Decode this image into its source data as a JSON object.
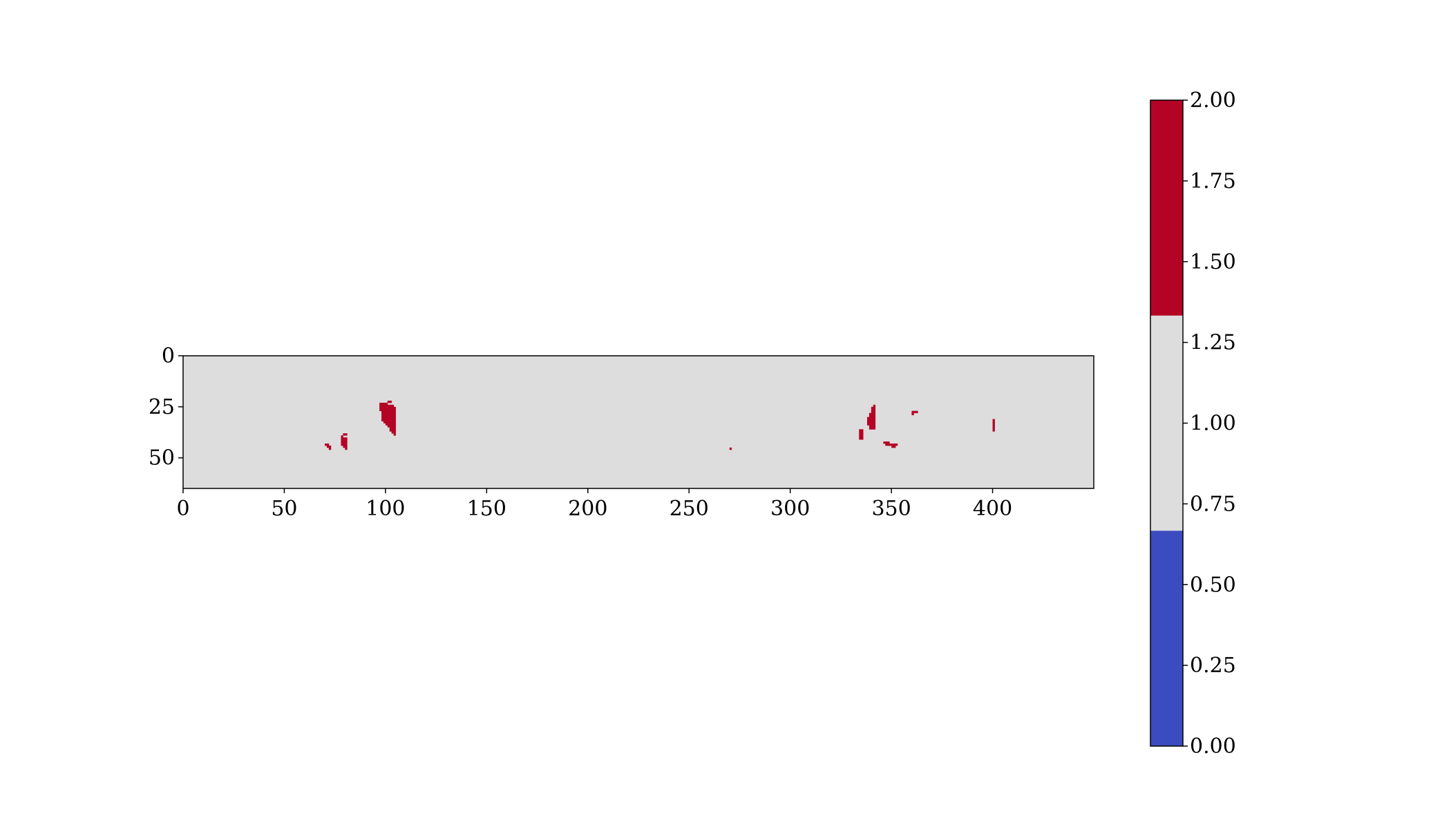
{
  "chart_data": {
    "type": "heatmap",
    "title": "",
    "xlabel": "",
    "ylabel": "",
    "grid": false,
    "xlim": [
      0,
      450
    ],
    "ylim": [
      65,
      0
    ],
    "x_ticks": [
      "0",
      "50",
      "100",
      "150",
      "200",
      "250",
      "300",
      "350",
      "400"
    ],
    "y_ticks": [
      "0",
      "25",
      "50"
    ],
    "background_value": 1,
    "colormap": "coolwarm",
    "colors": {
      "low": "#3b4cc0",
      "mid": "#dddddd",
      "high": "#b40426"
    },
    "colorbar": {
      "min": 0.0,
      "max": 2.0,
      "placement": "right",
      "levels": [
        {
          "from": 0.0,
          "to": 0.667,
          "color": "#3b4cc0"
        },
        {
          "from": 0.667,
          "to": 1.333,
          "color": "#dddddd"
        },
        {
          "from": 1.333,
          "to": 2.0,
          "color": "#b40426"
        }
      ],
      "ticks": [
        "0.00",
        "0.25",
        "0.50",
        "0.75",
        "1.00",
        "1.25",
        "1.50",
        "1.75",
        "2.00"
      ]
    },
    "regions": [
      {
        "value": 2,
        "cells": [
          [
            70,
            43
          ],
          [
            71,
            43
          ],
          [
            71,
            44
          ],
          [
            72,
            44
          ],
          [
            72,
            45
          ]
        ]
      },
      {
        "value": 2,
        "cells": [
          [
            78,
            39
          ],
          [
            79,
            38
          ],
          [
            80,
            38
          ],
          [
            78,
            40
          ],
          [
            79,
            40
          ],
          [
            80,
            40
          ],
          [
            78,
            41
          ],
          [
            79,
            41
          ],
          [
            80,
            41
          ],
          [
            78,
            42
          ],
          [
            79,
            42
          ],
          [
            80,
            42
          ],
          [
            78,
            43
          ],
          [
            79,
            43
          ],
          [
            80,
            43
          ],
          [
            79,
            44
          ],
          [
            80,
            44
          ],
          [
            80,
            45
          ]
        ]
      },
      {
        "value": 2,
        "cells": [
          [
            97,
            23
          ],
          [
            98,
            23
          ],
          [
            99,
            23
          ],
          [
            100,
            23
          ],
          [
            101,
            22
          ],
          [
            102,
            22
          ],
          [
            97,
            24
          ],
          [
            98,
            24
          ],
          [
            99,
            24
          ],
          [
            100,
            24
          ],
          [
            101,
            24
          ],
          [
            102,
            24
          ],
          [
            103,
            24
          ],
          [
            97,
            25
          ],
          [
            98,
            25
          ],
          [
            99,
            25
          ],
          [
            100,
            25
          ],
          [
            101,
            25
          ],
          [
            102,
            25
          ],
          [
            103,
            25
          ],
          [
            104,
            25
          ],
          [
            97,
            26
          ],
          [
            98,
            26
          ],
          [
            99,
            26
          ],
          [
            100,
            26
          ],
          [
            101,
            26
          ],
          [
            102,
            26
          ],
          [
            103,
            26
          ],
          [
            104,
            26
          ],
          [
            98,
            27
          ],
          [
            99,
            27
          ],
          [
            100,
            27
          ],
          [
            101,
            27
          ],
          [
            102,
            27
          ],
          [
            103,
            27
          ],
          [
            104,
            27
          ],
          [
            98,
            28
          ],
          [
            99,
            28
          ],
          [
            100,
            28
          ],
          [
            101,
            28
          ],
          [
            102,
            28
          ],
          [
            103,
            28
          ],
          [
            104,
            28
          ],
          [
            98,
            29
          ],
          [
            99,
            29
          ],
          [
            100,
            29
          ],
          [
            101,
            29
          ],
          [
            102,
            29
          ],
          [
            103,
            29
          ],
          [
            104,
            29
          ],
          [
            98,
            30
          ],
          [
            99,
            30
          ],
          [
            100,
            30
          ],
          [
            101,
            30
          ],
          [
            102,
            30
          ],
          [
            103,
            30
          ],
          [
            104,
            30
          ],
          [
            98,
            31
          ],
          [
            99,
            31
          ],
          [
            100,
            31
          ],
          [
            101,
            31
          ],
          [
            102,
            31
          ],
          [
            103,
            31
          ],
          [
            104,
            31
          ],
          [
            99,
            32
          ],
          [
            100,
            32
          ],
          [
            101,
            32
          ],
          [
            102,
            32
          ],
          [
            103,
            32
          ],
          [
            104,
            32
          ],
          [
            100,
            33
          ],
          [
            101,
            33
          ],
          [
            102,
            33
          ],
          [
            103,
            33
          ],
          [
            104,
            33
          ],
          [
            101,
            34
          ],
          [
            102,
            34
          ],
          [
            103,
            34
          ],
          [
            104,
            34
          ],
          [
            102,
            35
          ],
          [
            103,
            35
          ],
          [
            104,
            35
          ],
          [
            102,
            36
          ],
          [
            103,
            36
          ],
          [
            104,
            36
          ],
          [
            103,
            37
          ],
          [
            104,
            37
          ],
          [
            104,
            38
          ]
        ]
      },
      {
        "value": 2,
        "cells": [
          [
            270,
            45
          ]
        ]
      },
      {
        "value": 2,
        "cells": [
          [
            334,
            36
          ],
          [
            335,
            36
          ],
          [
            334,
            37
          ],
          [
            335,
            37
          ],
          [
            334,
            38
          ],
          [
            335,
            38
          ],
          [
            334,
            39
          ],
          [
            335,
            39
          ],
          [
            334,
            40
          ],
          [
            335,
            40
          ]
        ]
      },
      {
        "value": 2,
        "cells": [
          [
            341,
            24
          ],
          [
            340,
            25
          ],
          [
            341,
            25
          ],
          [
            340,
            26
          ],
          [
            341,
            26
          ],
          [
            340,
            27
          ],
          [
            341,
            27
          ],
          [
            339,
            28
          ],
          [
            340,
            28
          ],
          [
            341,
            28
          ],
          [
            339,
            29
          ],
          [
            340,
            29
          ],
          [
            341,
            29
          ],
          [
            338,
            30
          ],
          [
            339,
            30
          ],
          [
            340,
            30
          ],
          [
            341,
            30
          ],
          [
            338,
            31
          ],
          [
            339,
            31
          ],
          [
            340,
            31
          ],
          [
            341,
            31
          ],
          [
            338,
            32
          ],
          [
            339,
            32
          ],
          [
            340,
            32
          ],
          [
            341,
            32
          ],
          [
            338,
            33
          ],
          [
            339,
            33
          ],
          [
            340,
            33
          ],
          [
            341,
            33
          ],
          [
            339,
            34
          ],
          [
            340,
            34
          ],
          [
            341,
            34
          ],
          [
            339,
            35
          ],
          [
            340,
            35
          ],
          [
            341,
            35
          ]
        ]
      },
      {
        "value": 2,
        "cells": [
          [
            346,
            42
          ],
          [
            347,
            42
          ],
          [
            348,
            42
          ],
          [
            347,
            43
          ],
          [
            348,
            43
          ],
          [
            349,
            43
          ],
          [
            350,
            43
          ],
          [
            351,
            43
          ],
          [
            352,
            43
          ],
          [
            350,
            44
          ],
          [
            351,
            44
          ]
        ]
      },
      {
        "value": 2,
        "cells": [
          [
            360,
            27
          ],
          [
            361,
            27
          ],
          [
            362,
            27
          ],
          [
            360,
            28
          ]
        ]
      },
      {
        "value": 2,
        "cells": [
          [
            400,
            31
          ],
          [
            400,
            32
          ],
          [
            400,
            33
          ],
          [
            400,
            34
          ],
          [
            400,
            35
          ],
          [
            400,
            36
          ]
        ]
      }
    ]
  }
}
